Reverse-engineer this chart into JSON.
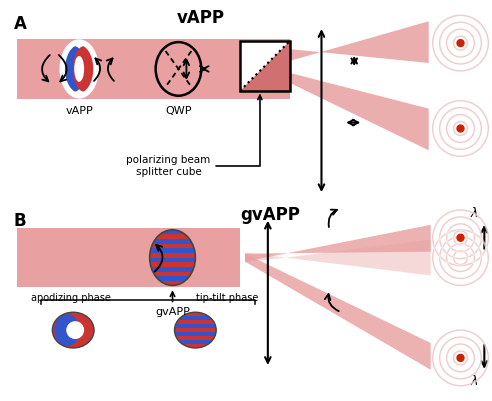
{
  "fig_width": 4.92,
  "fig_height": 4.01,
  "dpi": 100,
  "bg_color": "#ffffff",
  "beam_color": "#e8a0a0",
  "beam_color_dark": "#d07070",
  "beam_color_alpha": 0.75,
  "red_dot_color": "#cc2200",
  "blue_color": "#3355cc",
  "red_color": "#cc3333",
  "title_A": "vAPP",
  "title_B": "gvAPP",
  "label_A": "A",
  "label_B": "B",
  "label_vapp": "vAPP",
  "label_qwp": "QWP",
  "label_pbs": "polarizing beam\nsplitter cube",
  "label_gvapp": "gvAPP",
  "label_apodizing": "apodizing phase",
  "label_tiptilt": "tip-tilt phase"
}
